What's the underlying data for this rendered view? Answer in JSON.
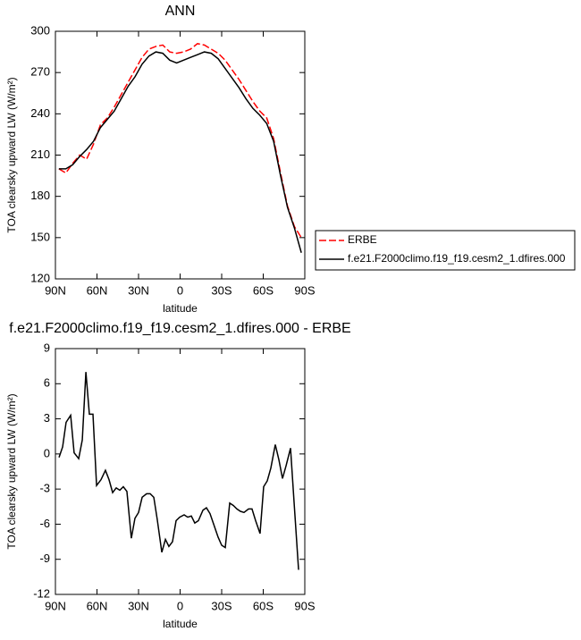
{
  "chart_data": [
    {
      "type": "line",
      "title": "ANN",
      "xlabel": "latitude",
      "ylabel": "TOA clearsky upward LW (W/m²)",
      "x": [
        87.5,
        82.5,
        77.5,
        72.5,
        67.5,
        62.5,
        57.5,
        52.5,
        47.5,
        42.5,
        37.5,
        32.5,
        27.5,
        22.5,
        17.5,
        12.5,
        7.5,
        2.5,
        -2.5,
        -7.5,
        -12.5,
        -17.5,
        -22.5,
        -27.5,
        -32.5,
        -37.5,
        -42.5,
        -47.5,
        -52.5,
        -57.5,
        -62.5,
        -67.5,
        -72.5,
        -77.5,
        -82.5,
        -87.5
      ],
      "series": [
        {
          "name": "ERBE",
          "color": "#ff0000",
          "dashed": true,
          "values": [
            200,
            197,
            204,
            210,
            207,
            218,
            232,
            237,
            245,
            254,
            263,
            272,
            281,
            287,
            289,
            290,
            285,
            284,
            285,
            287,
            291,
            290,
            287,
            284,
            279,
            272,
            265,
            257,
            249,
            242,
            237,
            222,
            197,
            173,
            158,
            150
          ]
        },
        {
          "name": "f.e21.F2000climo.f19_f19.cesm2_1.dfires.000",
          "color": "#000000",
          "dashed": false,
          "values": [
            200,
            200,
            203,
            209,
            214,
            220,
            230,
            236,
            242,
            251,
            260,
            267,
            276,
            282,
            285,
            284,
            279,
            277,
            279,
            281,
            283,
            285,
            284,
            280,
            273,
            266,
            259,
            251,
            244,
            239,
            233,
            220,
            195,
            172,
            157,
            139
          ]
        }
      ],
      "xlim": [
        90,
        -90
      ],
      "xticks": [
        {
          "value": 90,
          "label": "90N"
        },
        {
          "value": 60,
          "label": "60N"
        },
        {
          "value": 30,
          "label": "30N"
        },
        0,
        {
          "value": -30,
          "label": "30S"
        },
        {
          "value": -60,
          "label": "60S"
        },
        {
          "value": -90,
          "label": "90S"
        }
      ],
      "ylim": [
        120,
        300
      ],
      "yticks": [
        120,
        150,
        180,
        210,
        240,
        270,
        300
      ],
      "legend": "right"
    },
    {
      "type": "line",
      "title": "f.e21.F2000climo.f19_f19.cesm2_1.dfires.000 - ERBE",
      "xlabel": "latitude",
      "ylabel": "TOA clearsky upward LW (W/m²)",
      "x": [
        87.4,
        84.8,
        82.3,
        79,
        76.5,
        73.2,
        70.6,
        68,
        65.5,
        62.9,
        60.3,
        57.1,
        53.9,
        51.3,
        48.7,
        46.1,
        43.5,
        41,
        38.4,
        35.2,
        32.6,
        30,
        27.4,
        24.2,
        21.6,
        19,
        16.5,
        13.2,
        10.6,
        8.1,
        5.5,
        2.9,
        0.3,
        -2.9,
        -5.5,
        -8.1,
        -10.6,
        -13.2,
        -16.5,
        -19,
        -21.6,
        -24.2,
        -27.4,
        -30,
        -32.6,
        -35.8,
        -38.4,
        -41,
        -43.5,
        -46.1,
        -49.4,
        -51.9,
        -54.5,
        -57.7,
        -60.3,
        -62.9,
        -65.5,
        -68.7,
        -71.3,
        -73.9,
        -76.5,
        -79.7,
        -82.3,
        -85.5
      ],
      "values": [
        -0.3,
        0.6,
        2.7,
        3.3,
        0.1,
        -0.4,
        1.2,
        7.0,
        3.4,
        3.4,
        -2.7,
        -2.2,
        -1.4,
        -2.2,
        -3.3,
        -2.9,
        -3.1,
        -2.8,
        -3.2,
        -7.2,
        -5.5,
        -5.0,
        -3.7,
        -3.4,
        -3.4,
        -3.7,
        -5.6,
        -8.4,
        -7.3,
        -7.9,
        -7.5,
        -5.7,
        -5.4,
        -5.2,
        -5.4,
        -5.3,
        -5.9,
        -5.7,
        -4.8,
        -4.6,
        -5.1,
        -6.0,
        -7.1,
        -7.8,
        -8.0,
        -4.2,
        -4.4,
        -4.7,
        -4.9,
        -5.0,
        -4.7,
        -4.7,
        -5.7,
        -6.8,
        -2.8,
        -2.3,
        -1.2,
        0.8,
        -0.5,
        -2.1,
        -1.0,
        0.5,
        -4.2,
        -9.9
      ],
      "color": "#000000",
      "xlim": [
        90,
        -90
      ],
      "xticks": [
        {
          "value": 90,
          "label": "90N"
        },
        {
          "value": 60,
          "label": "60N"
        },
        {
          "value": 30,
          "label": "30N"
        },
        0,
        {
          "value": -30,
          "label": "30S"
        },
        {
          "value": -60,
          "label": "60S"
        },
        {
          "value": -90,
          "label": "90S"
        }
      ],
      "ylim": [
        -12,
        9
      ],
      "yticks": [
        -12,
        -9,
        -6,
        -3,
        0,
        3,
        6,
        9
      ]
    }
  ]
}
